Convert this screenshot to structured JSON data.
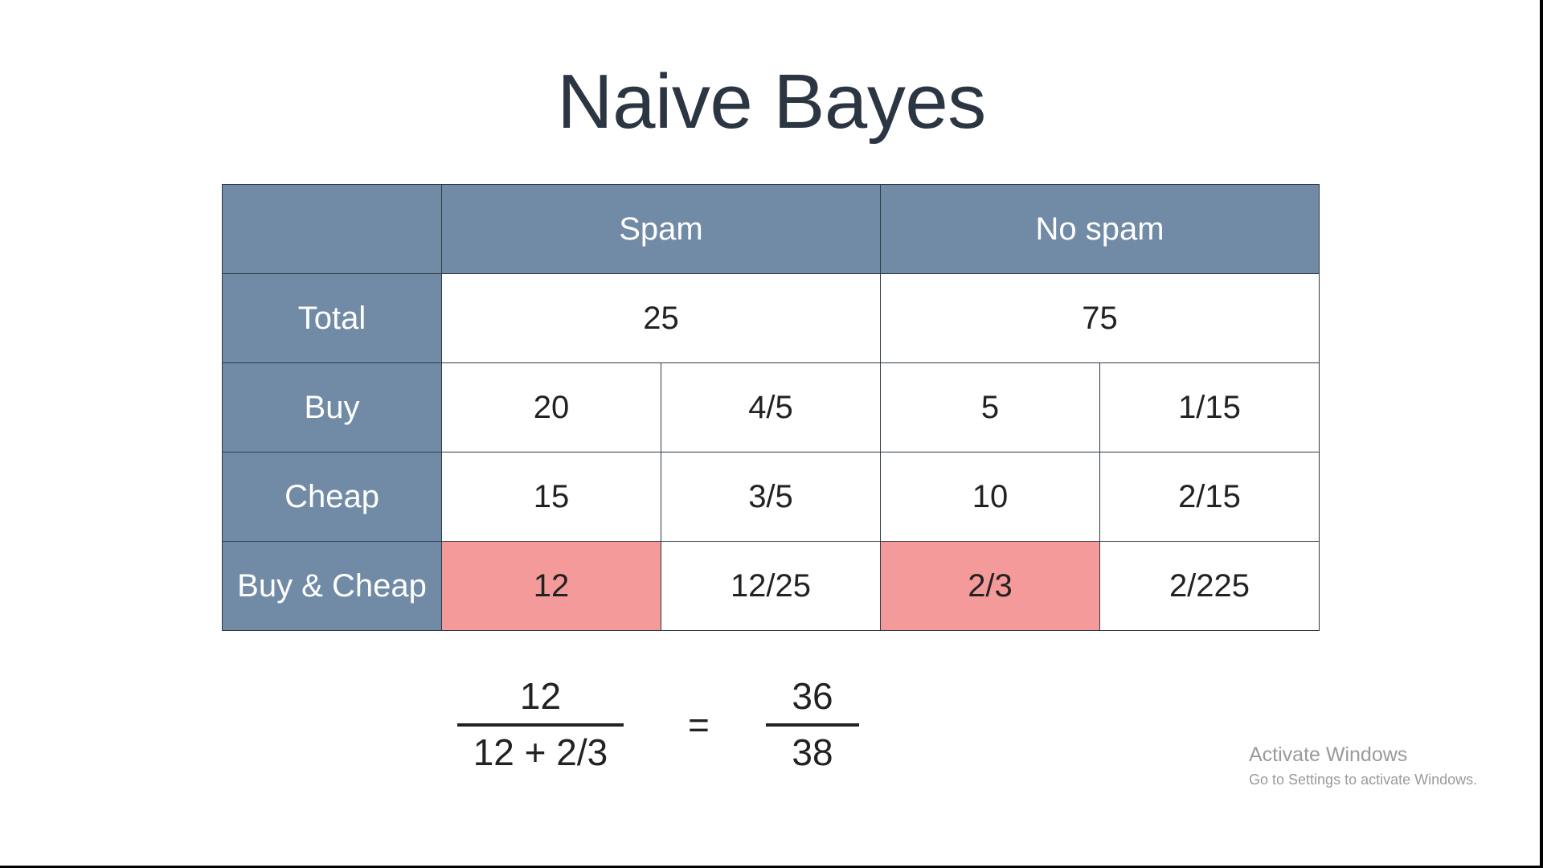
{
  "slide": {
    "title": "Naive Bayes"
  },
  "table": {
    "headers": [
      "",
      "Spam",
      "No spam"
    ],
    "rows": [
      {
        "label": "Total",
        "cells": [
          "25",
          "75"
        ]
      },
      {
        "label": "Buy",
        "cells": [
          "20",
          "4/5",
          "5",
          "1/15"
        ]
      },
      {
        "label": "Cheap",
        "cells": [
          "15",
          "3/5",
          "10",
          "2/15"
        ]
      },
      {
        "label": "Buy & Cheap",
        "cells": [
          "12",
          "12/25",
          "2/3",
          "2/225"
        ]
      }
    ],
    "highlight_color": "#f59a9a",
    "header_color": "#718ba6"
  },
  "formula": {
    "left_numerator": "12",
    "left_denominator": "12 + 2/3",
    "equals": "=",
    "right_numerator": "36",
    "right_denominator": "38"
  },
  "watermark": {
    "title": "Activate Windows",
    "subtitle": "Go to Settings to activate Windows."
  }
}
